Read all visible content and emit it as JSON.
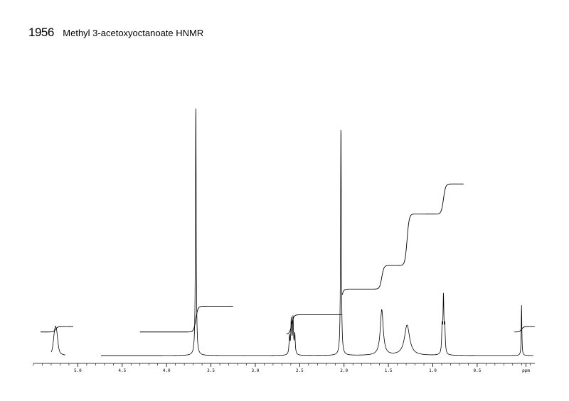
{
  "header": {
    "number": "1956",
    "title": "Methyl 3-acetoxyoctanoate HNMR"
  },
  "chart_data": {
    "type": "line",
    "title": "Methyl 3-acetoxyoctanoate HNMR",
    "xlabel": "ppm",
    "xlim": [
      5.5,
      -0.15
    ],
    "x_reversed": true,
    "ticks": [
      {
        "value": 5.0,
        "label": "5.0"
      },
      {
        "value": 4.5,
        "label": "4.5"
      },
      {
        "value": 4.0,
        "label": "4.0"
      },
      {
        "value": 3.5,
        "label": "3.5"
      },
      {
        "value": 3.0,
        "label": "3.0"
      },
      {
        "value": 2.5,
        "label": "2.5"
      },
      {
        "value": 2.0,
        "label": "2.0"
      },
      {
        "value": 1.5,
        "label": "1.5"
      },
      {
        "value": 1.0,
        "label": "1.0"
      },
      {
        "value": 0.5,
        "label": "0.5"
      },
      {
        "value": -0.05,
        "label": "ppm"
      }
    ],
    "peaks": [
      {
        "ppm": 5.25,
        "height": 0.06,
        "width": 0.012,
        "multiplet": 5,
        "spacing": 0.012
      },
      {
        "ppm": 3.67,
        "height": 1.0,
        "width": 0.005
      },
      {
        "ppm": 2.585,
        "height": 0.14,
        "width": 0.006,
        "multiplet": 4,
        "spacing": 0.02
      },
      {
        "ppm": 2.035,
        "height": 0.92,
        "width": 0.005
      },
      {
        "ppm": 1.575,
        "height": 0.18,
        "width": 0.02
      },
      {
        "ppm": 1.29,
        "height": 0.12,
        "width": 0.035
      },
      {
        "ppm": 0.88,
        "height": 0.22,
        "width": 0.006,
        "multiplet": 3,
        "spacing": 0.015
      },
      {
        "ppm": 0.0,
        "height": 0.2,
        "width": 0.004
      }
    ],
    "integrals": [
      {
        "from": 5.42,
        "to": 5.05,
        "step_ppm": 5.25,
        "start": 0.11,
        "end": 0.135
      },
      {
        "from": 4.3,
        "to": 3.25,
        "step_ppm": 3.67,
        "start": 0.11,
        "end": 0.23
      },
      {
        "from": 2.65,
        "to": 2.02,
        "step_ppm": 2.59,
        "start": 0.1,
        "end": 0.19
      },
      {
        "from": 2.02,
        "to": 0.65,
        "steps": [
          {
            "ppm": 2.035,
            "value": 0.31
          },
          {
            "ppm": 1.575,
            "value": 0.42
          },
          {
            "ppm": 1.29,
            "value": 0.66
          },
          {
            "ppm": 0.88,
            "value": 0.8
          }
        ],
        "start": 0.19
      },
      {
        "from": 0.08,
        "to": -0.15,
        "step_ppm": 0.0,
        "start": 0.11,
        "end": 0.135
      }
    ]
  }
}
